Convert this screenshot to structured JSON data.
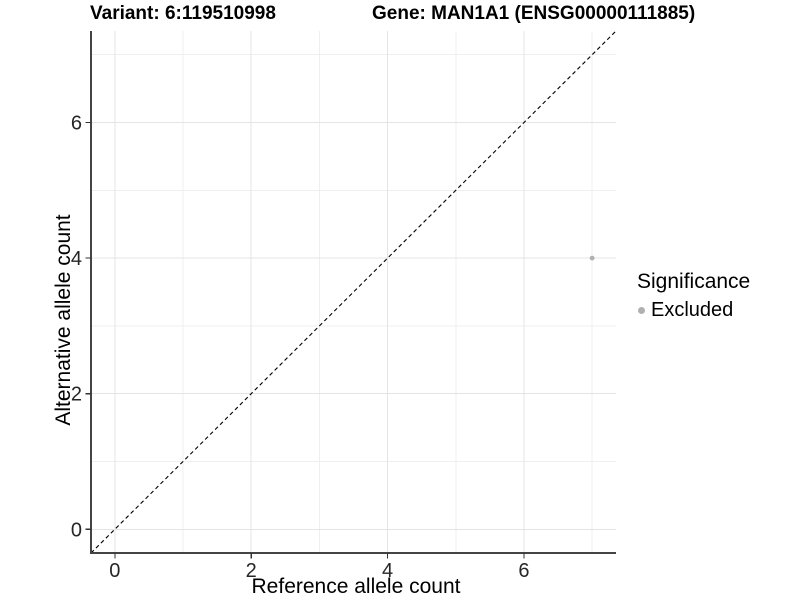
{
  "chart_data": {
    "type": "scatter",
    "title_left": "Variant: 6:119510998",
    "title_right": "Gene: MAN1A1 (ENSG00000111885)",
    "xlabel": "Reference allele count",
    "ylabel": "Alternative allele count",
    "xlim": [
      -0.35,
      7.35
    ],
    "ylim": [
      -0.35,
      7.35
    ],
    "x_ticks": [
      0,
      2,
      4,
      6
    ],
    "y_ticks": [
      0,
      2,
      4,
      6
    ],
    "x_minor_grid": [
      1,
      3,
      5,
      7
    ],
    "y_minor_grid": [
      1,
      3,
      5,
      7
    ],
    "grid": true,
    "legend_position": "right",
    "reference_line": {
      "equation": "y = x",
      "style": "dashed",
      "color": "#000000"
    },
    "series": [
      {
        "name": "Excluded",
        "color": "#b0b0b0",
        "points": [
          {
            "x": 7,
            "y": 4
          }
        ]
      }
    ],
    "legend": {
      "title": "Significance",
      "entries": [
        {
          "label": "Excluded",
          "color": "#b0b0b0"
        }
      ]
    },
    "colors": {
      "major_grid": "#e4e4e4",
      "minor_grid": "#efefef",
      "axis_line": "#444444",
      "tick_mark": "#333333",
      "point": "#b0b0b0",
      "background": "#ffffff"
    }
  }
}
